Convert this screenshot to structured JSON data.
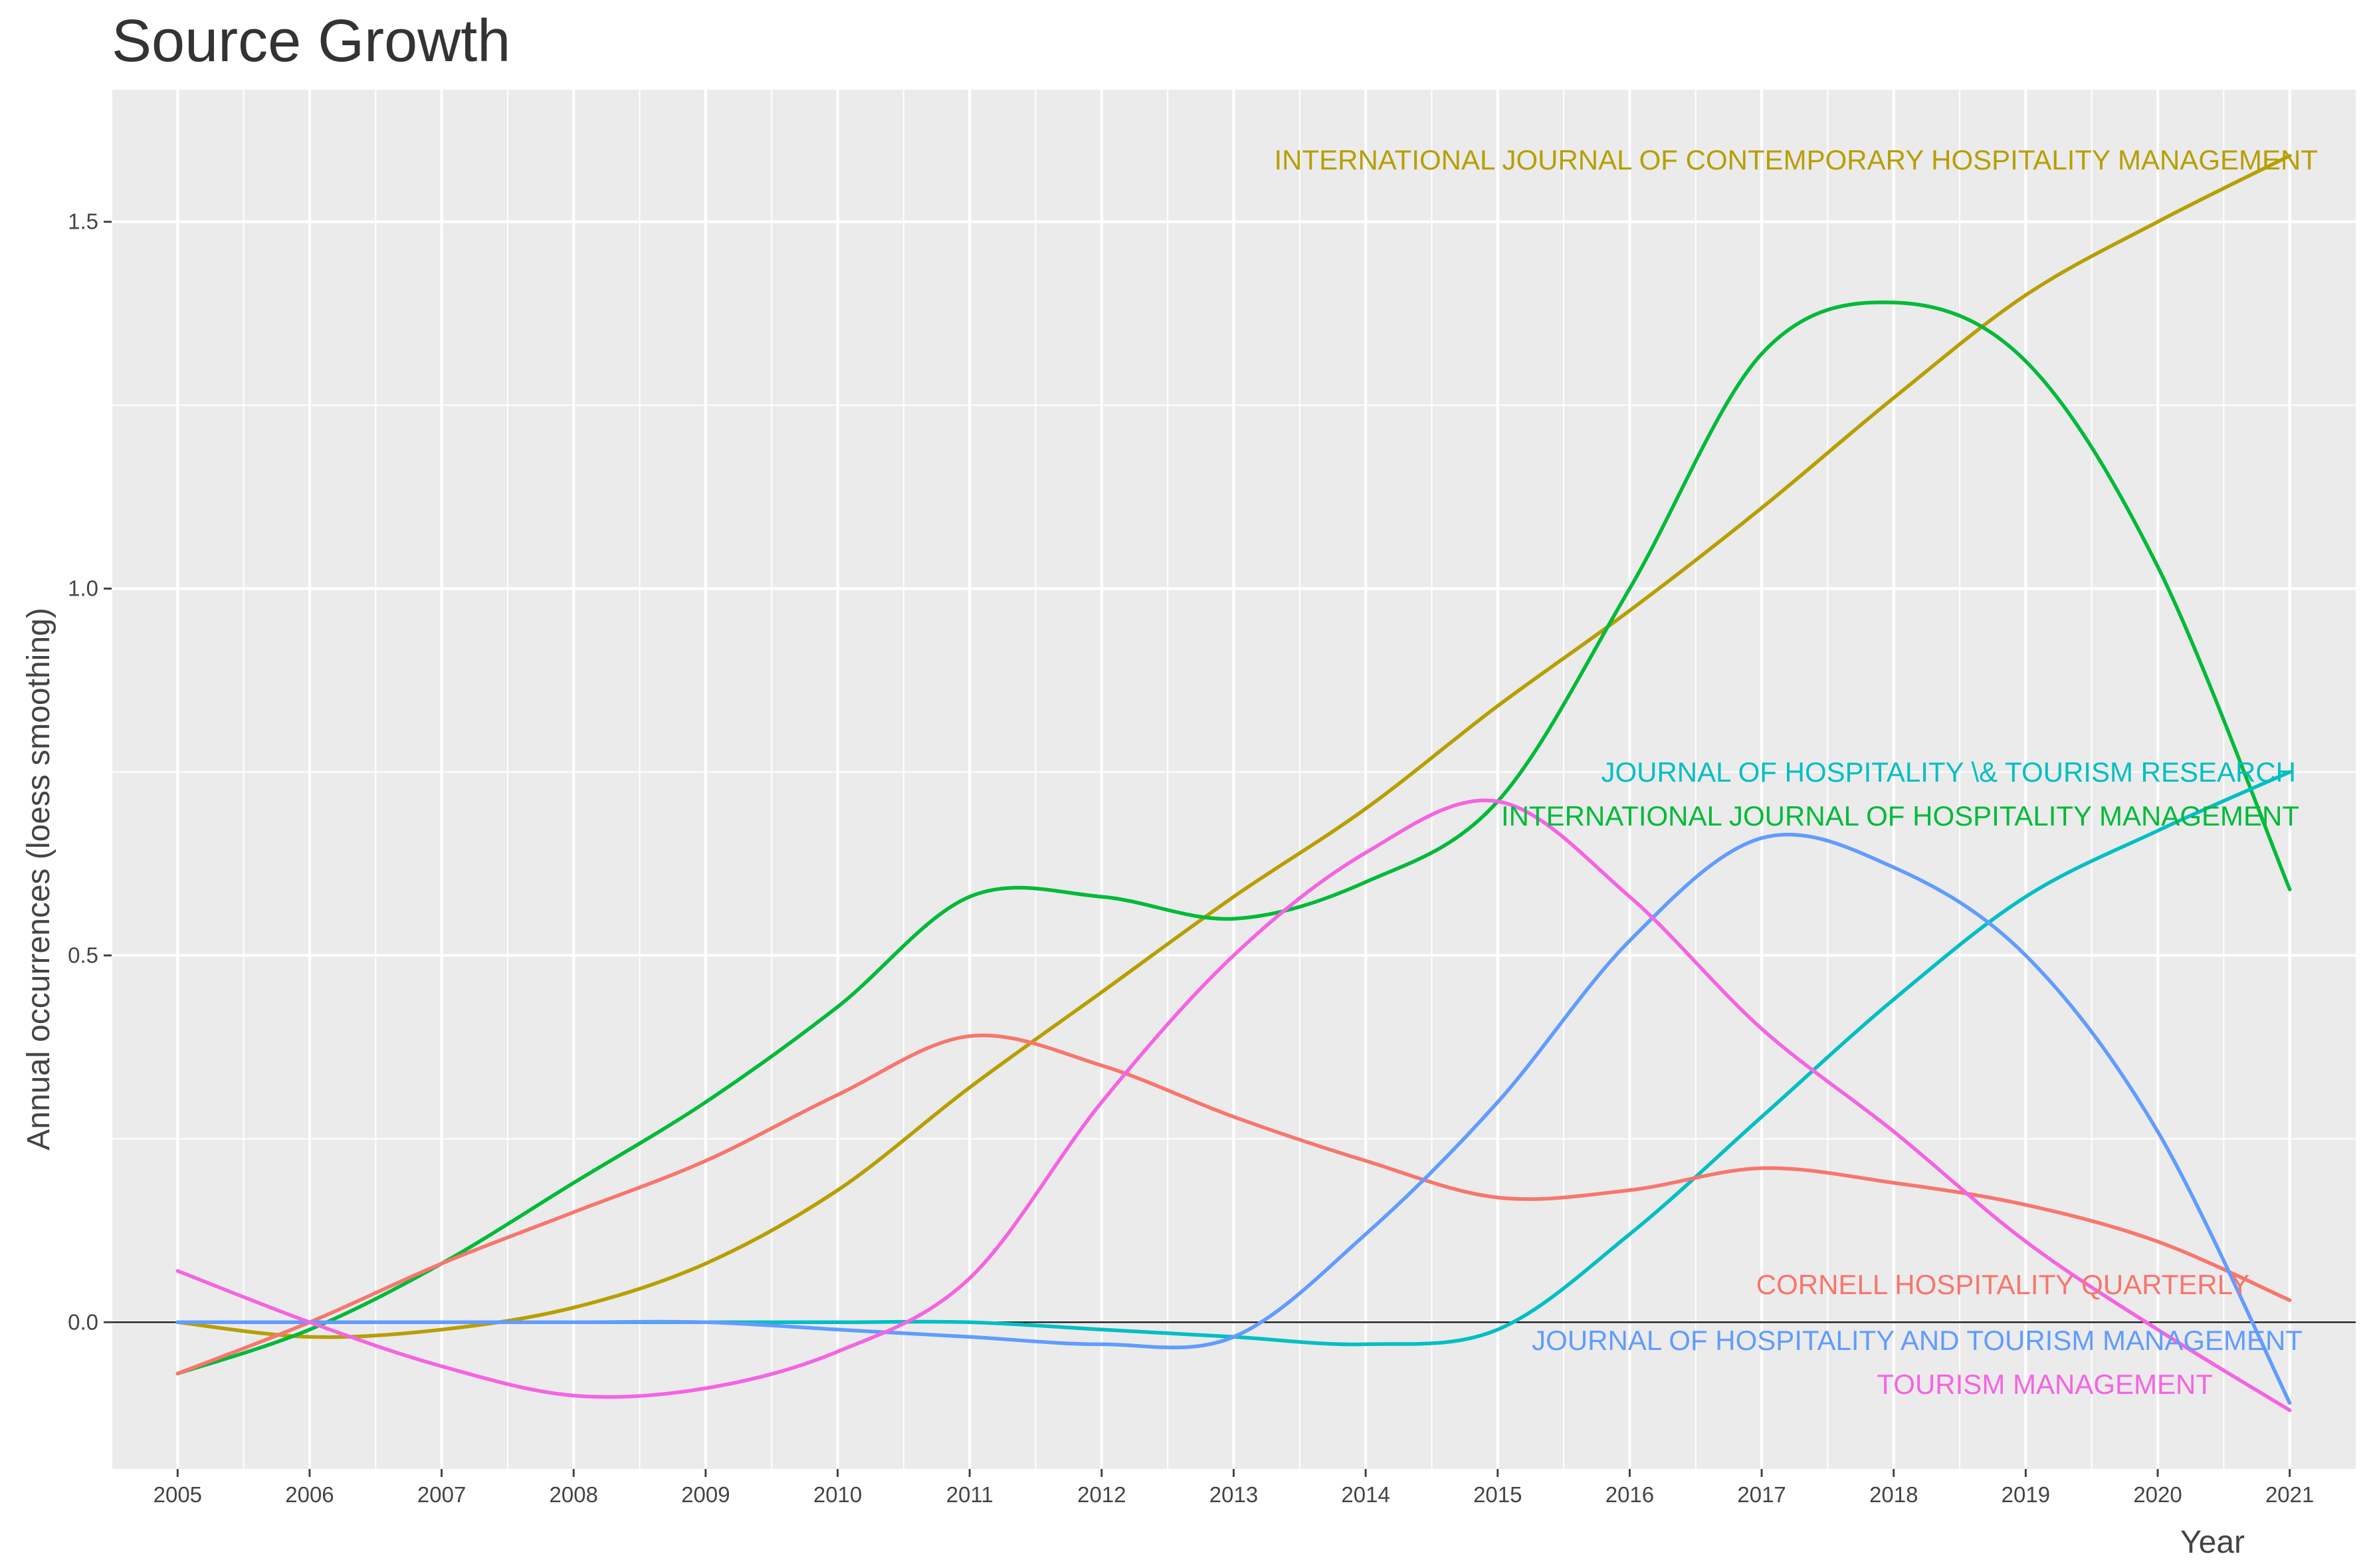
{
  "chart_data": {
    "type": "line",
    "title": "Source Growth",
    "xlabel": "Year",
    "ylabel": "Annual occurrences (loess smoothing)",
    "xlim": [
      2004.5,
      2021.5
    ],
    "ylim": [
      -0.2,
      1.68
    ],
    "grid": true,
    "x": [
      2005,
      2006,
      2007,
      2008,
      2009,
      2010,
      2011,
      2012,
      2013,
      2014,
      2015,
      2016,
      2017,
      2018,
      2019,
      2020,
      2021
    ],
    "x_tick_labels": [
      "2005",
      "2006",
      "2007",
      "2008",
      "2009",
      "2010",
      "2011",
      "2012",
      "2013",
      "2014",
      "2015",
      "2016",
      "2017",
      "2018",
      "2019",
      "2020",
      "2021"
    ],
    "y_ticks": [
      0.0,
      0.5,
      1.0,
      1.5
    ],
    "y_tick_labels": [
      "0.0",
      "0.5",
      "1.0",
      "1.5"
    ],
    "reference_line_y": 0,
    "series": [
      {
        "name": "INTERNATIONAL JOURNAL OF CONTEMPORARY HOSPITALITY MANAGEMENT",
        "color": "#B79F00",
        "values": [
          0.0,
          -0.02,
          -0.01,
          0.02,
          0.08,
          0.18,
          0.32,
          0.45,
          0.58,
          0.7,
          0.84,
          0.97,
          1.11,
          1.26,
          1.4,
          1.5,
          1.59
        ]
      },
      {
        "name": "INTERNATIONAL JOURNAL OF HOSPITALITY MANAGEMENT",
        "color": "#00BA38",
        "values": [
          -0.07,
          -0.01,
          0.08,
          0.19,
          0.3,
          0.43,
          0.58,
          0.58,
          0.55,
          0.6,
          0.71,
          1.0,
          1.32,
          1.39,
          1.31,
          1.03,
          0.59
        ]
      },
      {
        "name": "JOURNAL OF HOSPITALITY \\& TOURISM RESEARCH",
        "color": "#00BFC4",
        "values": [
          0.0,
          0.0,
          0.0,
          0.0,
          0.0,
          0.0,
          0.0,
          -0.01,
          -0.02,
          -0.03,
          -0.01,
          0.12,
          0.28,
          0.44,
          0.58,
          0.67,
          0.75
        ]
      },
      {
        "name": "CORNELL HOSPITALITY QUARTERLY",
        "color": "#F8766D",
        "values": [
          -0.07,
          0.0,
          0.08,
          0.15,
          0.22,
          0.31,
          0.39,
          0.35,
          0.28,
          0.22,
          0.17,
          0.18,
          0.21,
          0.19,
          0.16,
          0.11,
          0.03
        ]
      },
      {
        "name": "JOURNAL OF HOSPITALITY AND TOURISM MANAGEMENT",
        "color": "#619CFF",
        "values": [
          0.0,
          0.0,
          0.0,
          0.0,
          0.0,
          -0.01,
          -0.02,
          -0.03,
          -0.02,
          0.12,
          0.3,
          0.52,
          0.66,
          0.62,
          0.5,
          0.26,
          -0.11
        ]
      },
      {
        "name": "TOURISM MANAGEMENT",
        "color": "#F564E3",
        "values": [
          0.07,
          0.0,
          -0.06,
          -0.1,
          -0.09,
          -0.04,
          0.06,
          0.3,
          0.5,
          0.64,
          0.71,
          0.58,
          0.4,
          0.26,
          0.11,
          -0.01,
          -0.12
        ]
      }
    ]
  }
}
